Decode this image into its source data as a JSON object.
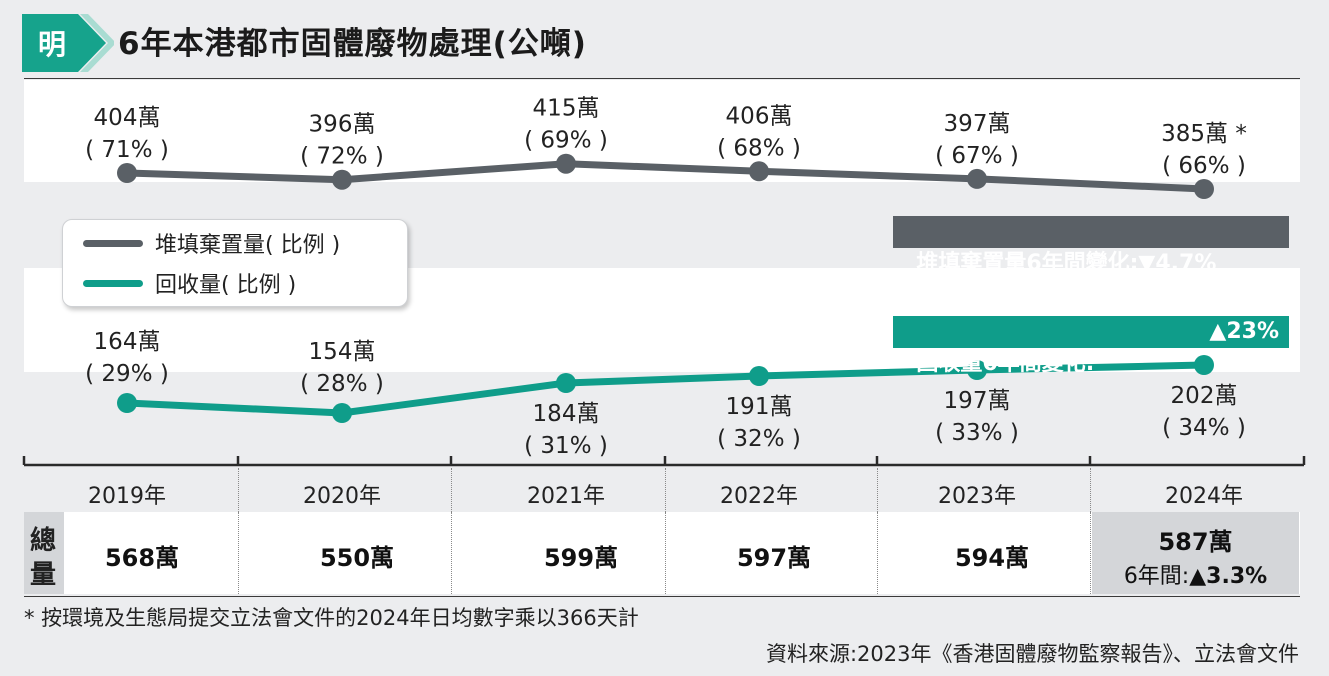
{
  "header": {
    "logo_char": "明",
    "title": "6年本港都市固體廢物處理(公噸)"
  },
  "legend": {
    "landfill_label": "堆填棄置量( 比例 )",
    "recovery_label": "回收量( 比例 )"
  },
  "badges": {
    "landfill_change": "堆填棄置量6年間變化:▼4.7%",
    "recovery_change_label": "回收量6年間變化:",
    "recovery_change_value": "▲23%"
  },
  "colors": {
    "landfill": "#5a6066",
    "recovery": "#0f9d8a",
    "logo": "#16a38c"
  },
  "chart_data": {
    "type": "line",
    "x": [
      "2019年",
      "2020年",
      "2021年",
      "2022年",
      "2023年",
      "2024年"
    ],
    "series": [
      {
        "name": "堆填棄置量( 比例 )",
        "values": [
          404,
          396,
          415,
          406,
          397,
          385
        ],
        "value_labels": [
          "404萬",
          "396萬",
          "415萬",
          "406萬",
          "397萬",
          "385萬 *"
        ],
        "pct_labels": [
          "( 71% )",
          "( 72% )",
          "( 69% )",
          "( 68% )",
          "( 67% )",
          "( 66% )"
        ]
      },
      {
        "name": "回收量( 比例 )",
        "values": [
          164,
          154,
          184,
          191,
          197,
          202
        ],
        "value_labels": [
          "164萬",
          "154萬",
          "184萬",
          "191萬",
          "197萬",
          "202萬"
        ],
        "pct_labels": [
          "( 29% )",
          "( 28% )",
          "( 31% )",
          "( 32% )",
          "( 33% )",
          "( 34% )"
        ]
      }
    ],
    "totals": [
      "568萬",
      "550萬",
      "599萬",
      "597萬",
      "594萬",
      "587萬"
    ],
    "totals_label": [
      "總",
      "量"
    ],
    "total_change": {
      "prefix": "6年間:",
      "value": "▲3.3%"
    }
  },
  "footnote": "* 按環境及生態局提交立法會文件的2024年日均數字乘以366天計",
  "source": "資料來源:2023年《香港固體廢物監察報告》、立法會文件"
}
